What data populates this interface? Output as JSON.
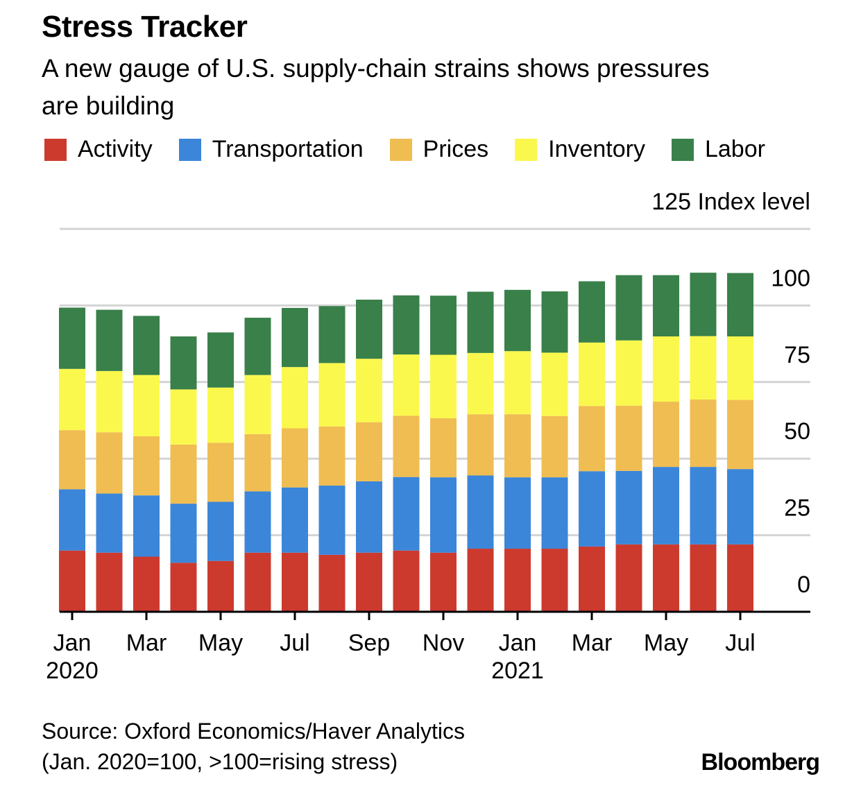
{
  "header": {
    "title": "Stress Tracker",
    "subtitle": "A new gauge of U.S. supply-chain strains shows pressures are building"
  },
  "legend": [
    {
      "name": "Activity",
      "color": "#cc3a2e"
    },
    {
      "name": "Transportation",
      "color": "#3b86d9"
    },
    {
      "name": "Prices",
      "color": "#f0bd52"
    },
    {
      "name": "Inventory",
      "color": "#fbf84d"
    },
    {
      "name": "Labor",
      "color": "#39804a"
    }
  ],
  "footer": {
    "source_line1": "Source: Oxford Economics/Haver Analytics",
    "source_line2": "(Jan. 2020=100, >100=rising stress)",
    "brand": "Bloomberg"
  },
  "chart_data": {
    "type": "bar",
    "stacked": true,
    "ylabel": "Index level",
    "ylim": [
      0,
      125
    ],
    "yticks": [
      0,
      25,
      50,
      75,
      100,
      125
    ],
    "ytick_labels": [
      "0",
      "25",
      "50",
      "75",
      "100",
      "125"
    ],
    "grid": true,
    "categories": [
      "Jan 2020",
      "Feb 2020",
      "Mar 2020",
      "Apr 2020",
      "May 2020",
      "Jun 2020",
      "Jul 2020",
      "Aug 2020",
      "Sep 2020",
      "Oct 2020",
      "Nov 2020",
      "Dec 2020",
      "Jan 2021",
      "Feb 2021",
      "Mar 2021",
      "Apr 2021",
      "May 2021",
      "Jun 2021",
      "Jul 2021"
    ],
    "xtick_labels": [
      {
        "index": 0,
        "month": "Jan",
        "year": "2020"
      },
      {
        "index": 2,
        "month": "Mar",
        "year": ""
      },
      {
        "index": 4,
        "month": "May",
        "year": ""
      },
      {
        "index": 6,
        "month": "Jul",
        "year": ""
      },
      {
        "index": 8,
        "month": "Sep",
        "year": ""
      },
      {
        "index": 10,
        "month": "Nov",
        "year": ""
      },
      {
        "index": 12,
        "month": "Jan",
        "year": "2021"
      },
      {
        "index": 14,
        "month": "Mar",
        "year": ""
      },
      {
        "index": 16,
        "month": "May",
        "year": ""
      },
      {
        "index": 18,
        "month": "Jul",
        "year": ""
      }
    ],
    "series": [
      {
        "name": "Activity",
        "color": "#cc3a2e",
        "values": [
          20,
          19.3,
          18,
          16,
          16.6,
          19.3,
          19.3,
          18.6,
          19.3,
          20,
          19.3,
          20.6,
          20.6,
          20.6,
          21.3,
          22,
          22,
          22,
          22
        ]
      },
      {
        "name": "Transportation",
        "color": "#3b86d9",
        "values": [
          20,
          19.3,
          20,
          19.3,
          19.3,
          20,
          21.3,
          22.6,
          23.3,
          24,
          24.6,
          23.9,
          23.3,
          23.3,
          24.6,
          24,
          25.3,
          25.3,
          24.6
        ]
      },
      {
        "name": "Prices",
        "color": "#f0bd52",
        "values": [
          19.3,
          20,
          19.3,
          19.3,
          19.3,
          18.7,
          19.3,
          19.3,
          19.3,
          20,
          19.3,
          20,
          20.6,
          20,
          21.3,
          21.3,
          21.3,
          22,
          22.6
        ]
      },
      {
        "name": "Inventory",
        "color": "#fbf84d",
        "values": [
          20,
          20,
          20,
          18,
          18,
          19.3,
          20,
          20.7,
          20.7,
          20,
          20.7,
          20,
          20.6,
          20.7,
          20.7,
          21.3,
          21.3,
          20.7,
          20.7
        ]
      },
      {
        "name": "Labor",
        "color": "#39804a",
        "values": [
          20,
          20,
          19.3,
          17.3,
          18,
          18.7,
          19.3,
          18.6,
          19.3,
          19.3,
          19.3,
          20,
          20,
          20,
          20,
          21.3,
          20,
          20.7,
          20.7
        ]
      }
    ]
  }
}
